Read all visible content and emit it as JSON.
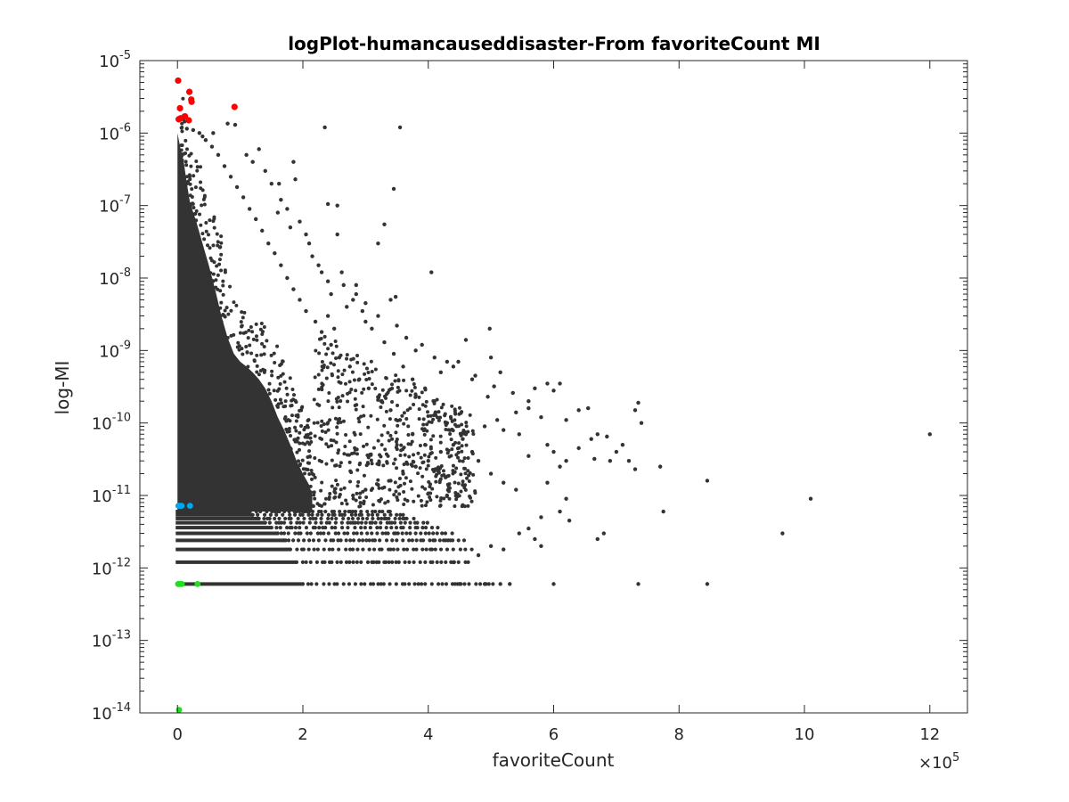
{
  "chart_data": {
    "type": "scatter",
    "title": "logPlot-humancauseddisaster-From favoriteCount MI",
    "xlabel": "favoriteCount",
    "ylabel": "log-MI",
    "x_scale": "linear",
    "x_multiplier_label": "×10",
    "x_multiplier_exponent": "5",
    "x_ticks": [
      0,
      2,
      4,
      6,
      8,
      10,
      12
    ],
    "x_tick_labels": [
      "0",
      "2",
      "4",
      "6",
      "8",
      "10",
      "12"
    ],
    "xlim": [
      -60000,
      1260000
    ],
    "y_scale": "log",
    "y_ticks": [
      1e-14,
      1e-13,
      1e-12,
      1e-11,
      1e-10,
      1e-09,
      1e-08,
      1e-07,
      1e-06,
      1e-05
    ],
    "y_tick_labels": [
      {
        "base": "10",
        "exp": "-14"
      },
      {
        "base": "10",
        "exp": "-13"
      },
      {
        "base": "10",
        "exp": "-12"
      },
      {
        "base": "10",
        "exp": "-11"
      },
      {
        "base": "10",
        "exp": "-10"
      },
      {
        "base": "10",
        "exp": "-9"
      },
      {
        "base": "10",
        "exp": "-8"
      },
      {
        "base": "10",
        "exp": "-7"
      },
      {
        "base": "10",
        "exp": "-6"
      },
      {
        "base": "10",
        "exp": "-5"
      }
    ],
    "ylim": [
      1e-14,
      1e-05
    ],
    "grid": false,
    "legend": "none",
    "series": [
      {
        "color": "#333333",
        "marker_size": 2.2,
        "points": [
          [
            235000,
            1.2e-06
          ],
          [
            355000,
            1.2e-06
          ],
          [
            92000,
            1.3e-06
          ],
          [
            80000,
            1.35e-06
          ],
          [
            40000,
            9e-07
          ],
          [
            57000,
            1e-06
          ],
          [
            130000,
            6e-07
          ],
          [
            185000,
            4e-07
          ],
          [
            188000,
            2.3e-07
          ],
          [
            162000,
            2e-07
          ],
          [
            240000,
            1.05e-07
          ],
          [
            255000,
            1e-07
          ],
          [
            345000,
            1.7e-07
          ],
          [
            330000,
            5.5e-08
          ],
          [
            255000,
            4e-08
          ],
          [
            210000,
            3e-08
          ],
          [
            320000,
            3e-08
          ],
          [
            405000,
            1.2e-08
          ],
          [
            285000,
            8e-09
          ],
          [
            265000,
            8e-09
          ],
          [
            245000,
            6e-09
          ],
          [
            348000,
            5.5e-09
          ],
          [
            340000,
            5e-09
          ],
          [
            240000,
            3e-09
          ],
          [
            250000,
            2e-09
          ],
          [
            365000,
            1.5e-09
          ],
          [
            380000,
            1e-09
          ],
          [
            460000,
            1.4e-09
          ],
          [
            498000,
            2e-09
          ],
          [
            430000,
            7e-10
          ],
          [
            448000,
            7e-10
          ],
          [
            500000,
            8e-10
          ],
          [
            515000,
            5e-10
          ],
          [
            470000,
            4e-10
          ],
          [
            420000,
            5e-10
          ],
          [
            570000,
            3e-10
          ],
          [
            590000,
            3.5e-10
          ],
          [
            600000,
            2.8e-10
          ],
          [
            610000,
            3.5e-10
          ],
          [
            560000,
            2e-10
          ],
          [
            495000,
            2.3e-10
          ],
          [
            640000,
            1.5e-10
          ],
          [
            655000,
            1.6e-10
          ],
          [
            620000,
            1.1e-10
          ],
          [
            670000,
            7e-11
          ],
          [
            685000,
            6.5e-11
          ],
          [
            735000,
            1.9e-10
          ],
          [
            730000,
            1.5e-10
          ],
          [
            740000,
            1e-10
          ],
          [
            1200000,
            7e-11
          ],
          [
            590000,
            5e-11
          ],
          [
            600000,
            4e-11
          ],
          [
            620000,
            3e-11
          ],
          [
            665000,
            3.2e-11
          ],
          [
            690000,
            3e-11
          ],
          [
            720000,
            3e-11
          ],
          [
            730000,
            2.3e-11
          ],
          [
            770000,
            2.5e-11
          ],
          [
            845000,
            1.6e-11
          ],
          [
            1010000,
            9e-12
          ],
          [
            620000,
            9e-12
          ],
          [
            775000,
            6e-12
          ],
          [
            680000,
            3e-12
          ],
          [
            670000,
            2.5e-12
          ],
          [
            965000,
            3e-12
          ],
          [
            580000,
            5e-12
          ],
          [
            625000,
            4.5e-12
          ],
          [
            735000,
            6e-13
          ],
          [
            845000,
            6e-13
          ],
          [
            530000,
            6e-13
          ],
          [
            515000,
            6e-13
          ],
          [
            490000,
            6e-13
          ],
          [
            450000,
            6e-13
          ],
          [
            440000,
            1.2e-12
          ],
          [
            545000,
            3e-12
          ],
          [
            570000,
            2.5e-12
          ],
          [
            480000,
            1.5e-12
          ],
          [
            500000,
            2e-12
          ],
          [
            520000,
            1.8e-12
          ],
          [
            470000,
            4e-11
          ],
          [
            455000,
            6e-11
          ],
          [
            480000,
            3e-11
          ],
          [
            520000,
            8e-11
          ],
          [
            545000,
            7e-11
          ],
          [
            430000,
            1e-10
          ],
          [
            410000,
            2e-10
          ],
          [
            395000,
            3e-10
          ],
          [
            375000,
            4e-10
          ],
          [
            360000,
            6e-10
          ],
          [
            345000,
            9e-10
          ],
          [
            330000,
            1.3e-09
          ],
          [
            310000,
            2e-09
          ],
          [
            300000,
            2.5e-09
          ],
          [
            295000,
            3.5e-09
          ],
          [
            280000,
            5e-09
          ],
          [
            270000,
            4e-09
          ],
          [
            262000,
            1.2e-08
          ],
          [
            225000,
            1.5e-08
          ],
          [
            215000,
            2e-08
          ],
          [
            205000,
            4e-08
          ],
          [
            195000,
            6e-08
          ],
          [
            175000,
            9e-08
          ],
          [
            165000,
            1.2e-07
          ],
          [
            150000,
            2e-07
          ],
          [
            140000,
            3e-07
          ],
          [
            120000,
            4e-07
          ],
          [
            110000,
            5e-07
          ],
          [
            160000,
            8e-08
          ],
          [
            180000,
            5e-08
          ],
          [
            230000,
            1.2e-08
          ],
          [
            240000,
            9e-09
          ],
          [
            285000,
            6e-09
          ],
          [
            300000,
            4.5e-09
          ],
          [
            320000,
            3e-09
          ],
          [
            350000,
            2.2e-09
          ],
          [
            390000,
            1.2e-09
          ],
          [
            410000,
            8e-10
          ],
          [
            440000,
            6e-10
          ],
          [
            475000,
            4.5e-10
          ],
          [
            505000,
            3.2e-10
          ],
          [
            535000,
            2.6e-10
          ],
          [
            560000,
            1.6e-10
          ],
          [
            580000,
            1.2e-10
          ],
          [
            540000,
            1.4e-10
          ],
          [
            510000,
            1.1e-10
          ],
          [
            490000,
            9e-11
          ],
          [
            460000,
            7e-11
          ],
          [
            440000,
            5e-11
          ],
          [
            420000,
            4e-11
          ],
          [
            400000,
            3e-11
          ],
          [
            380000,
            2.5e-11
          ],
          [
            360000,
            2e-11
          ],
          [
            340000,
            1.6e-11
          ],
          [
            320000,
            1.4e-11
          ],
          [
            300000,
            1.2e-11
          ],
          [
            280000,
            1e-11
          ],
          [
            600000,
            6e-13
          ],
          [
            580000,
            2e-12
          ],
          [
            560000,
            3.5e-12
          ],
          [
            610000,
            6e-12
          ],
          [
            590000,
            1.5e-11
          ],
          [
            610000,
            2.5e-11
          ],
          [
            640000,
            4.5e-11
          ],
          [
            660000,
            6e-11
          ],
          [
            700000,
            4e-11
          ],
          [
            710000,
            5e-11
          ],
          [
            560000,
            3.5e-11
          ],
          [
            520000,
            1.5e-11
          ],
          [
            500000,
            2e-11
          ],
          [
            540000,
            1.2e-11
          ],
          [
            455000,
            1.4e-11
          ],
          [
            430000,
            1e-11
          ],
          [
            415000,
            2.2e-11
          ],
          [
            395000,
            5e-11
          ],
          [
            375000,
            7e-11
          ],
          [
            355000,
            1.1e-10
          ],
          [
            340000,
            1.5e-10
          ],
          [
            325000,
            2e-10
          ],
          [
            305000,
            3e-10
          ],
          [
            290000,
            4e-10
          ],
          [
            275000,
            6e-10
          ],
          [
            258000,
            8e-10
          ],
          [
            245000,
            1.2e-09
          ],
          [
            230000,
            1.8e-09
          ],
          [
            220000,
            2.5e-09
          ],
          [
            205000,
            3.5e-09
          ],
          [
            195000,
            5e-09
          ],
          [
            185000,
            7e-09
          ],
          [
            175000,
            1e-08
          ],
          [
            165000,
            1.5e-08
          ],
          [
            155000,
            2.2e-08
          ],
          [
            145000,
            3e-08
          ],
          [
            135000,
            4.5e-08
          ],
          [
            125000,
            6.5e-08
          ],
          [
            115000,
            9e-08
          ],
          [
            105000,
            1.3e-07
          ],
          [
            95000,
            1.8e-07
          ],
          [
            85000,
            2.5e-07
          ],
          [
            75000,
            3.5e-07
          ],
          [
            65000,
            5e-07
          ],
          [
            55000,
            6.5e-07
          ],
          [
            45000,
            8e-07
          ],
          [
            35000,
            1e-06
          ],
          [
            25000,
            1.1e-06
          ],
          [
            15000,
            1.15e-06
          ]
        ]
      },
      {
        "color": "#ff0000",
        "marker_size": 3.6,
        "points": [
          [
            1000,
            5.3e-06
          ],
          [
            19000,
            3.7e-06
          ],
          [
            22000,
            2.9e-06
          ],
          [
            22500,
            2.7e-06
          ],
          [
            91000,
            2.3e-06
          ],
          [
            4000,
            2.2e-06
          ],
          [
            12000,
            1.7e-06
          ],
          [
            5000,
            1.6e-06
          ],
          [
            2000,
            1.55e-06
          ],
          [
            18000,
            1.5e-06
          ]
        ]
      },
      {
        "color": "#00a8f0",
        "marker_size": 3.4,
        "points": [
          [
            1500,
            7.2e-12
          ],
          [
            4000,
            7.2e-12
          ],
          [
            6500,
            7.2e-12
          ],
          [
            20000,
            7.2e-12
          ]
        ]
      },
      {
        "color": "#22dd22",
        "marker_size": 3.4,
        "points": [
          [
            1000,
            6e-13
          ],
          [
            3000,
            6e-13
          ],
          [
            5000,
            6e-13
          ],
          [
            7000,
            6e-13
          ],
          [
            32000,
            6e-13
          ],
          [
            2500,
            1.1e-14
          ]
        ]
      }
    ],
    "dense_band_top_envelope": [
      [
        0,
        1e-06
      ],
      [
        5000,
        6e-07
      ],
      [
        10000,
        4e-07
      ],
      [
        15000,
        2e-07
      ],
      [
        20000,
        1.1e-07
      ],
      [
        30000,
        6e-08
      ],
      [
        40000,
        3e-08
      ],
      [
        50000,
        1.5e-08
      ],
      [
        60000,
        7e-09
      ],
      [
        70000,
        3e-09
      ],
      [
        80000,
        1.5e-09
      ],
      [
        90000,
        9e-10
      ],
      [
        100000,
        7e-10
      ],
      [
        110000,
        6e-10
      ],
      [
        120000,
        5e-10
      ],
      [
        130000,
        4e-10
      ],
      [
        140000,
        3e-10
      ],
      [
        150000,
        2e-10
      ],
      [
        160000,
        1.2e-10
      ],
      [
        170000,
        8e-11
      ],
      [
        180000,
        5e-11
      ],
      [
        190000,
        3e-11
      ],
      [
        200000,
        2e-11
      ],
      [
        210000,
        1.4e-11
      ],
      [
        215000,
        1e-11
      ]
    ],
    "quantized_levels": [
      {
        "y": 6e-13,
        "x_max": 505000
      },
      {
        "y": 1.2e-12,
        "x_max": 470000
      },
      {
        "y": 1.8e-12,
        "x_max": 470000
      },
      {
        "y": 2.4e-12,
        "x_max": 465000
      },
      {
        "y": 3e-12,
        "x_max": 440000
      },
      {
        "y": 3.6e-12,
        "x_max": 420000
      },
      {
        "y": 4.2e-12,
        "x_max": 400000
      },
      {
        "y": 4.8e-12,
        "x_max": 380000
      },
      {
        "y": 5.4e-12,
        "x_max": 360000
      },
      {
        "y": 6e-12,
        "x_max": 340000
      }
    ],
    "dense_band_color": "#333333"
  }
}
